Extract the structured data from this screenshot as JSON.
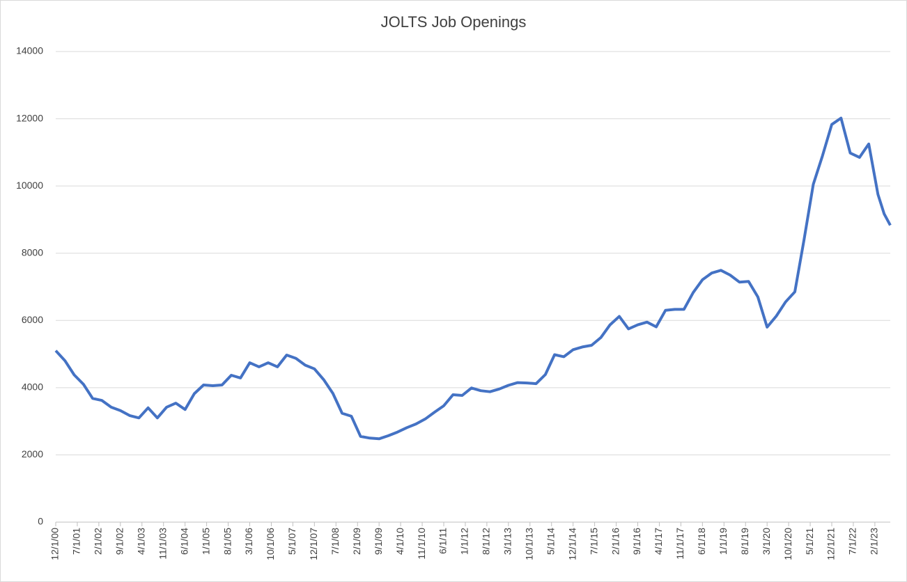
{
  "chart_data": {
    "type": "line",
    "title": "JOLTS Job Openings",
    "x": [
      "12/1/00",
      "3/1/01",
      "6/1/01",
      "9/1/01",
      "12/1/01",
      "3/1/02",
      "6/1/02",
      "9/1/02",
      "12/1/02",
      "3/1/03",
      "6/1/03",
      "9/1/03",
      "12/1/03",
      "3/1/04",
      "6/1/04",
      "9/1/04",
      "12/1/04",
      "3/1/05",
      "6/1/05",
      "9/1/05",
      "12/1/05",
      "3/1/06",
      "6/1/06",
      "9/1/06",
      "12/1/06",
      "3/1/07",
      "6/1/07",
      "9/1/07",
      "12/1/07",
      "3/1/08",
      "6/1/08",
      "9/1/08",
      "12/1/08",
      "3/1/09",
      "6/1/09",
      "9/1/09",
      "12/1/09",
      "3/1/10",
      "6/1/10",
      "9/1/10",
      "12/1/10",
      "3/1/11",
      "6/1/11",
      "9/1/11",
      "12/1/11",
      "3/1/12",
      "6/1/12",
      "9/1/12",
      "12/1/12",
      "3/1/13",
      "6/1/13",
      "9/1/13",
      "12/1/13",
      "3/1/14",
      "6/1/14",
      "9/1/14",
      "12/1/14",
      "3/1/15",
      "6/1/15",
      "9/1/15",
      "12/1/15",
      "3/1/16",
      "6/1/16",
      "9/1/16",
      "12/1/16",
      "3/1/17",
      "6/1/17",
      "9/1/17",
      "12/1/17",
      "3/1/18",
      "6/1/18",
      "9/1/18",
      "12/1/18",
      "3/1/19",
      "6/1/19",
      "9/1/19",
      "12/1/19",
      "3/1/20",
      "6/1/20",
      "9/1/20",
      "12/1/20",
      "3/1/21",
      "6/1/21",
      "9/1/21",
      "12/1/21",
      "3/1/22",
      "6/1/22",
      "9/1/22",
      "12/1/22",
      "3/1/23",
      "5/1/23",
      "7/1/23"
    ],
    "series": [
      {
        "color": "#4472c4",
        "values": [
          5100,
          4800,
          4380,
          4100,
          3680,
          3620,
          3420,
          3320,
          3170,
          3100,
          3400,
          3100,
          3420,
          3540,
          3350,
          3820,
          4080,
          4060,
          4080,
          4370,
          4290,
          4740,
          4620,
          4740,
          4620,
          4970,
          4870,
          4670,
          4560,
          4240,
          3830,
          3240,
          3150,
          2550,
          2500,
          2480,
          2570,
          2680,
          2810,
          2920,
          3070,
          3270,
          3460,
          3790,
          3770,
          3990,
          3910,
          3880,
          3960,
          4070,
          4150,
          4140,
          4120,
          4390,
          4980,
          4920,
          5130,
          5210,
          5260,
          5490,
          5870,
          6120,
          5750,
          5870,
          5950,
          5810,
          6300,
          6330,
          6330,
          6830,
          7210,
          7410,
          7490,
          7350,
          7140,
          7160,
          6700,
          5800,
          6130,
          6550,
          6850,
          8400,
          10050,
          10900,
          11830,
          12020,
          10980,
          10850,
          11250,
          9750,
          9170,
          8830
        ]
      }
    ],
    "xlim": [
      "12/1/00",
      "7/1/23"
    ],
    "xticks": [
      "12/1/00",
      "7/1/01",
      "2/1/02",
      "9/1/02",
      "4/1/03",
      "11/1/03",
      "6/1/04",
      "1/1/05",
      "8/1/05",
      "3/1/06",
      "10/1/06",
      "5/1/07",
      "12/1/07",
      "7/1/08",
      "2/1/09",
      "9/1/09",
      "4/1/10",
      "11/1/10",
      "6/1/11",
      "1/1/12",
      "8/1/12",
      "3/1/13",
      "10/1/13",
      "5/1/14",
      "12/1/14",
      "7/1/15",
      "2/1/16",
      "9/1/16",
      "4/1/17",
      "11/1/17",
      "6/1/18",
      "1/1/19",
      "8/1/19",
      "3/1/20",
      "10/1/20",
      "5/1/21",
      "12/1/21",
      "7/1/22",
      "2/1/23"
    ],
    "ylim": [
      0,
      14000
    ],
    "yticks": [
      0,
      2000,
      4000,
      6000,
      8000,
      10000,
      12000,
      14000
    ],
    "grid": true
  }
}
